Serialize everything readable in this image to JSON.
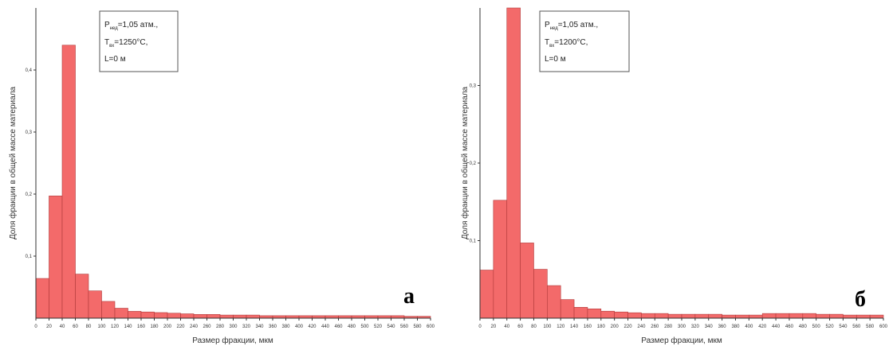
{
  "chart_data": [
    {
      "type": "bar",
      "panel_label": "а",
      "xlabel": "Размер фракции, мкм",
      "ylabel": "Доля фракции в общей массе материала",
      "xlim": [
        0,
        600
      ],
      "ylim": [
        0,
        0.5
      ],
      "bin_width": 20,
      "x_ticks": [
        0,
        20,
        40,
        60,
        80,
        100,
        120,
        140,
        160,
        180,
        200,
        220,
        240,
        260,
        280,
        300,
        320,
        340,
        360,
        380,
        400,
        420,
        440,
        460,
        480,
        500,
        520,
        540,
        560,
        580,
        600
      ],
      "y_ticks": [
        {
          "value": 0.1,
          "label": "0,1"
        },
        {
          "value": 0.2,
          "label": "0,2"
        },
        {
          "value": 0.3,
          "label": "0,3"
        },
        {
          "value": 0.4,
          "label": "0,4"
        }
      ],
      "values": [
        0.064,
        0.197,
        0.44,
        0.071,
        0.044,
        0.027,
        0.016,
        0.011,
        0.01,
        0.009,
        0.008,
        0.007,
        0.006,
        0.006,
        0.005,
        0.005,
        0.005,
        0.004,
        0.004,
        0.004,
        0.004,
        0.004,
        0.004,
        0.004,
        0.004,
        0.004,
        0.004,
        0.004,
        0.003,
        0.003
      ],
      "legend": {
        "line1_main": "P",
        "line1_sub": "нед",
        "line1_rest": "=1,05 атм.,",
        "line2_main": "T",
        "line2_sub": "вх",
        "line2_rest": "=1250°C,",
        "line3": "L=0 м"
      }
    },
    {
      "type": "bar",
      "panel_label": "б",
      "xlabel": "Размер фракции, мкм",
      "ylabel": "Доля фракции в общей массе материала",
      "xlim": [
        0,
        600
      ],
      "ylim": [
        0,
        0.4
      ],
      "bin_width": 20,
      "x_ticks": [
        0,
        20,
        40,
        60,
        80,
        100,
        120,
        140,
        160,
        180,
        200,
        220,
        240,
        260,
        280,
        300,
        320,
        340,
        360,
        380,
        400,
        420,
        440,
        460,
        480,
        500,
        520,
        540,
        560,
        580,
        600
      ],
      "y_ticks": [
        {
          "value": 0.1,
          "label": "0,1"
        },
        {
          "value": 0.2,
          "label": "0,2"
        },
        {
          "value": 0.3,
          "label": "0,3"
        }
      ],
      "values": [
        0.062,
        0.152,
        0.4,
        0.097,
        0.063,
        0.042,
        0.024,
        0.014,
        0.012,
        0.009,
        0.008,
        0.007,
        0.006,
        0.006,
        0.005,
        0.005,
        0.005,
        0.005,
        0.004,
        0.004,
        0.004,
        0.006,
        0.006,
        0.006,
        0.006,
        0.005,
        0.005,
        0.004,
        0.004,
        0.004
      ],
      "legend": {
        "line1_main": "P",
        "line1_sub": "нед",
        "line1_rest": "=1,05 атм.,",
        "line2_main": "T",
        "line2_sub": "вх",
        "line2_rest": "=1200°C,",
        "line3": "L=0 м"
      }
    }
  ]
}
